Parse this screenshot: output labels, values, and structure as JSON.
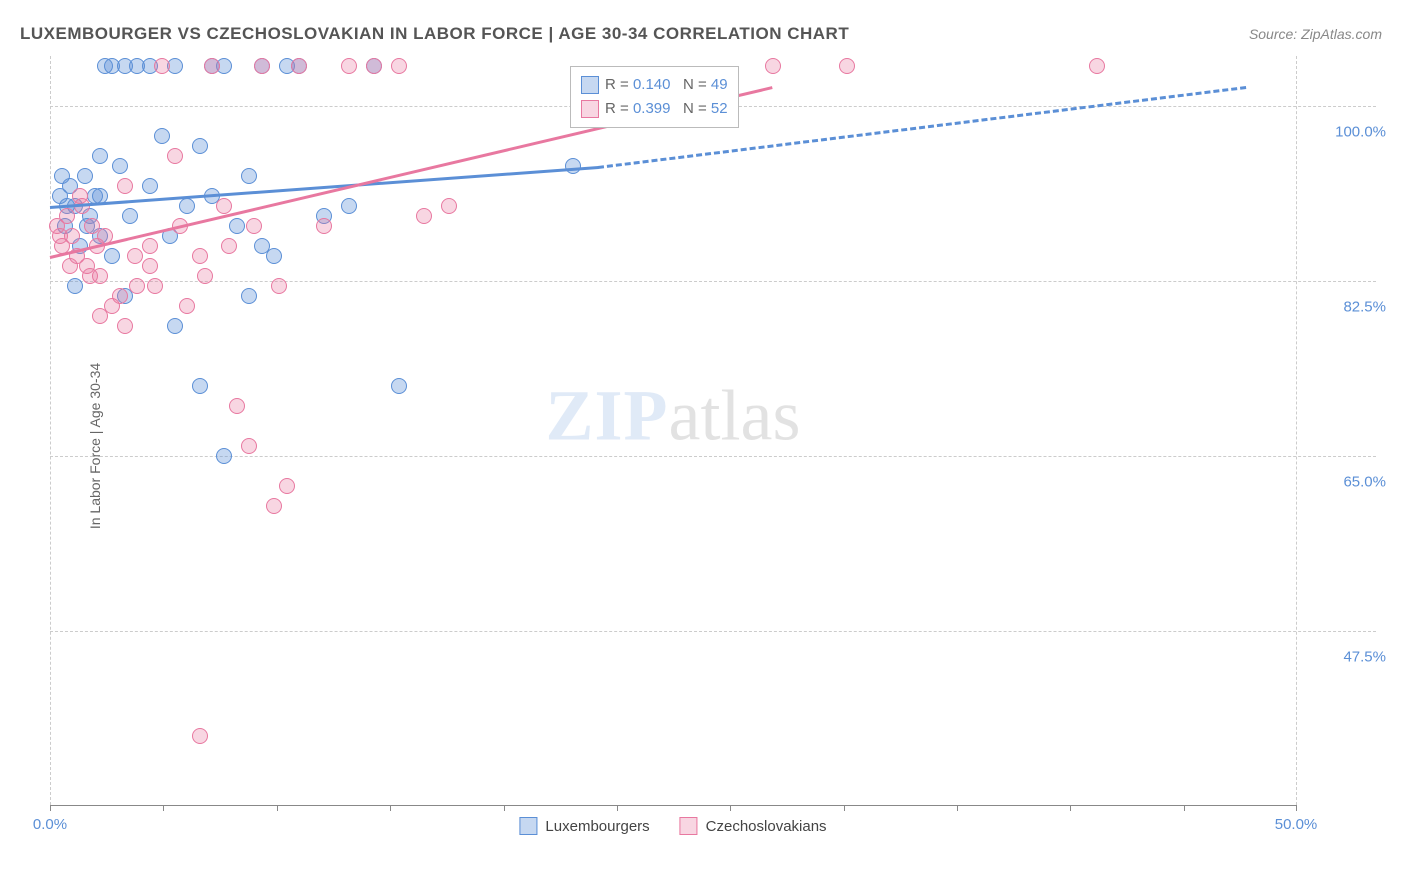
{
  "title": "LUXEMBOURGER VS CZECHOSLOVAKIAN IN LABOR FORCE | AGE 30-34 CORRELATION CHART",
  "source": "Source: ZipAtlas.com",
  "y_axis_label": "In Labor Force | Age 30-34",
  "watermark": {
    "part1": "ZIP",
    "part2": "atlas"
  },
  "chart": {
    "type": "scatter",
    "background_color": "#ffffff",
    "grid_color": "#cccccc",
    "axis_color": "#888888",
    "x_range": [
      0,
      50
    ],
    "y_range": [
      30,
      105
    ],
    "y_ticks": [
      {
        "value": 100.0,
        "label": "100.0%"
      },
      {
        "value": 82.5,
        "label": "82.5%"
      },
      {
        "value": 65.0,
        "label": "65.0%"
      },
      {
        "value": 47.5,
        "label": "47.5%"
      }
    ],
    "x_ticks": [
      {
        "value": 0.0,
        "label": "0.0%"
      },
      {
        "value": 50.0,
        "label": "50.0%"
      }
    ],
    "x_tick_marks": [
      0,
      4.55,
      9.1,
      13.65,
      18.2,
      22.75,
      27.3,
      31.85,
      36.4,
      40.95,
      45.5,
      50.0
    ],
    "marker_radius": 8,
    "marker_border_width": 1.2,
    "trendline_width": 3,
    "series": [
      {
        "name": "Luxembourgers",
        "fill_color": "rgba(91,143,214,0.35)",
        "stroke_color": "#5b8fd6",
        "points": [
          [
            0.4,
            91
          ],
          [
            0.6,
            88
          ],
          [
            0.8,
            92
          ],
          [
            1.0,
            90
          ],
          [
            1.2,
            86
          ],
          [
            1.4,
            93
          ],
          [
            1.6,
            89
          ],
          [
            1.8,
            91
          ],
          [
            2.0,
            87
          ],
          [
            2.2,
            104
          ],
          [
            2.5,
            104
          ],
          [
            3.0,
            104
          ],
          [
            3.5,
            104
          ],
          [
            4.0,
            104
          ],
          [
            4.5,
            97
          ],
          [
            5.0,
            104
          ],
          [
            5.5,
            90
          ],
          [
            6.0,
            96
          ],
          [
            6.5,
            104
          ],
          [
            7.0,
            104
          ],
          [
            7.5,
            88
          ],
          [
            8.0,
            93
          ],
          [
            8.5,
            104
          ],
          [
            9.0,
            85
          ],
          [
            3.0,
            81
          ],
          [
            4.0,
            92
          ],
          [
            2.0,
            95
          ],
          [
            1.0,
            82
          ],
          [
            2.5,
            85
          ],
          [
            5.0,
            78
          ],
          [
            6.0,
            72
          ],
          [
            7.0,
            65
          ],
          [
            8.0,
            81
          ],
          [
            10.0,
            104
          ],
          [
            11.0,
            89
          ],
          [
            12.0,
            90
          ],
          [
            13.0,
            104
          ],
          [
            14.0,
            72
          ],
          [
            21.0,
            94
          ],
          [
            0.5,
            93
          ],
          [
            0.7,
            90
          ],
          [
            1.5,
            88
          ],
          [
            2.0,
            91
          ],
          [
            2.8,
            94
          ],
          [
            3.2,
            89
          ],
          [
            4.8,
            87
          ],
          [
            6.5,
            91
          ],
          [
            8.5,
            86
          ],
          [
            9.5,
            104
          ]
        ],
        "trend": {
          "x1": 0,
          "y1": 90,
          "x2": 22,
          "y2": 94,
          "dash_x2": 48,
          "dash_y2": 102
        }
      },
      {
        "name": "Czechoslovakians",
        "fill_color": "rgba(232,120,160,0.30)",
        "stroke_color": "#e878a0",
        "points": [
          [
            0.3,
            88
          ],
          [
            0.5,
            86
          ],
          [
            0.7,
            89
          ],
          [
            0.9,
            87
          ],
          [
            1.1,
            85
          ],
          [
            1.3,
            90
          ],
          [
            1.5,
            84
          ],
          [
            1.7,
            88
          ],
          [
            1.9,
            86
          ],
          [
            2.0,
            83
          ],
          [
            2.5,
            80
          ],
          [
            3.0,
            78
          ],
          [
            3.5,
            82
          ],
          [
            4.0,
            86
          ],
          [
            4.5,
            104
          ],
          [
            5.0,
            95
          ],
          [
            5.5,
            80
          ],
          [
            6.0,
            85
          ],
          [
            6.5,
            104
          ],
          [
            7.0,
            90
          ],
          [
            7.5,
            70
          ],
          [
            8.0,
            66
          ],
          [
            8.5,
            104
          ],
          [
            9.0,
            60
          ],
          [
            9.5,
            62
          ],
          [
            10.0,
            104
          ],
          [
            11.0,
            88
          ],
          [
            12.0,
            104
          ],
          [
            13.0,
            104
          ],
          [
            14.0,
            104
          ],
          [
            15.0,
            89
          ],
          [
            16.0,
            90
          ],
          [
            3.0,
            92
          ],
          [
            4.0,
            84
          ],
          [
            2.0,
            79
          ],
          [
            6.0,
            37
          ],
          [
            29.0,
            104
          ],
          [
            32.0,
            104
          ],
          [
            42.0,
            104
          ],
          [
            0.4,
            87
          ],
          [
            0.8,
            84
          ],
          [
            1.2,
            91
          ],
          [
            1.6,
            83
          ],
          [
            2.2,
            87
          ],
          [
            2.8,
            81
          ],
          [
            3.4,
            85
          ],
          [
            4.2,
            82
          ],
          [
            5.2,
            88
          ],
          [
            6.2,
            83
          ],
          [
            7.2,
            86
          ],
          [
            8.2,
            88
          ],
          [
            9.2,
            82
          ]
        ],
        "trend": {
          "x1": 0,
          "y1": 85,
          "x2": 29,
          "y2": 102
        }
      }
    ]
  },
  "correlation_legend": {
    "rows": [
      {
        "color_fill": "rgba(91,143,214,0.35)",
        "color_stroke": "#5b8fd6",
        "r_label": "R =",
        "r_value": "0.140",
        "n_label": "N =",
        "n_value": "49"
      },
      {
        "color_fill": "rgba(232,120,160,0.30)",
        "color_stroke": "#e878a0",
        "r_label": "R =",
        "r_value": "0.399",
        "n_label": "N =",
        "n_value": "52"
      }
    ],
    "text_color": "#666",
    "value_color": "#5b8fd6"
  },
  "bottom_legend": [
    {
      "label": "Luxembourgers",
      "fill": "rgba(91,143,214,0.35)",
      "stroke": "#5b8fd6"
    },
    {
      "label": "Czechoslovakians",
      "fill": "rgba(232,120,160,0.30)",
      "stroke": "#e878a0"
    }
  ]
}
